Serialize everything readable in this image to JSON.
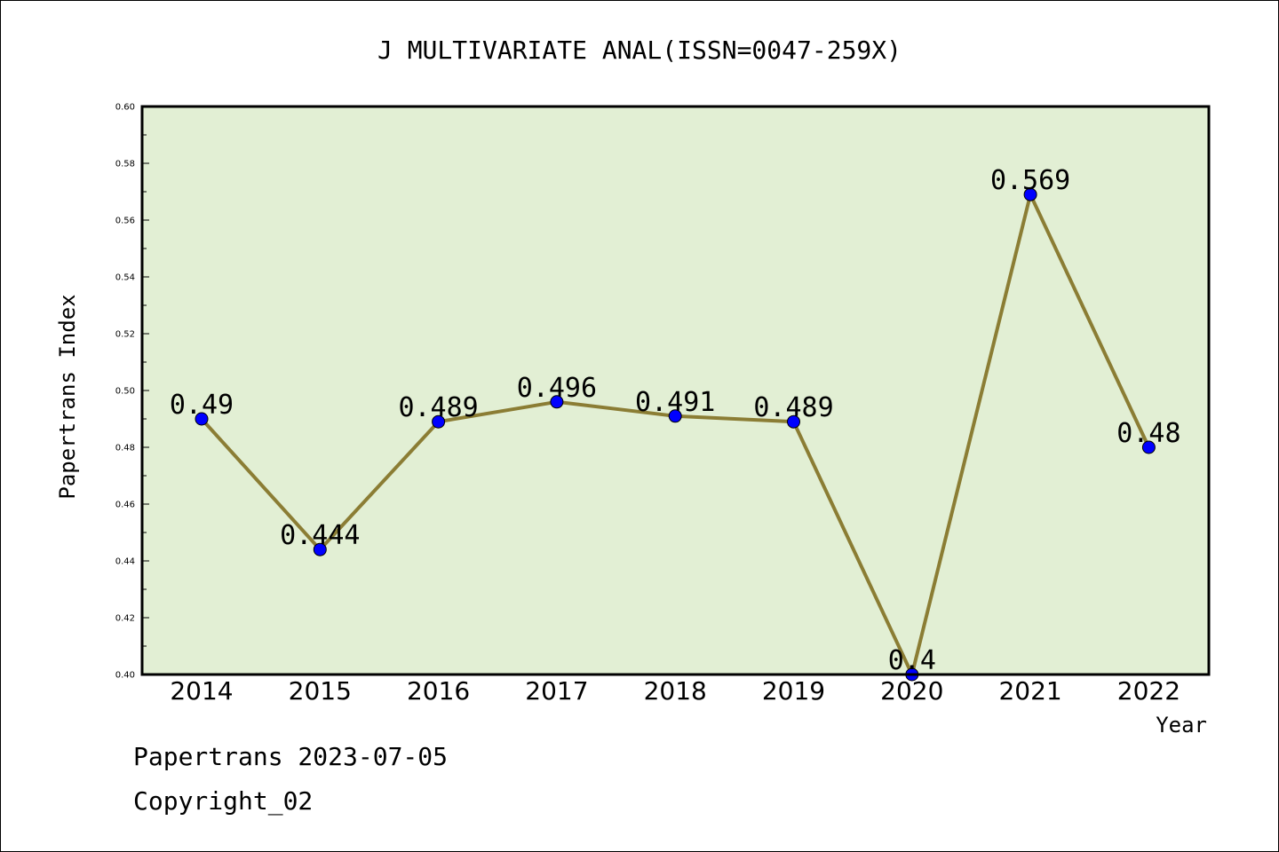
{
  "chart_data": {
    "type": "line",
    "title": "J MULTIVARIATE ANAL(ISSN=0047-259X)",
    "xlabel": "Year",
    "ylabel": "Papertrans Index",
    "categories": [
      "2014",
      "2015",
      "2016",
      "2017",
      "2018",
      "2019",
      "2020",
      "2021",
      "2022"
    ],
    "values": [
      0.49,
      0.444,
      0.489,
      0.496,
      0.491,
      0.489,
      0.4,
      0.569,
      0.48
    ],
    "data_labels": [
      "0.49",
      "0.444",
      "0.489",
      "0.496",
      "0.491",
      "0.489",
      "0.4",
      "0.569",
      "0.48"
    ],
    "ylim": [
      0.4,
      0.6
    ],
    "yticks": [
      "0.40",
      "0.42",
      "0.44",
      "0.46",
      "0.48",
      "0.50",
      "0.52",
      "0.54",
      "0.56",
      "0.58",
      "0.60"
    ],
    "grid": false,
    "legend": "none",
    "colors": {
      "line": "#8b7d34",
      "marker": "#0000ff",
      "plot_background": "#e2efd4"
    }
  },
  "footer": {
    "line1": "Papertrans 2023-07-05",
    "line2": "Copyright_02"
  }
}
